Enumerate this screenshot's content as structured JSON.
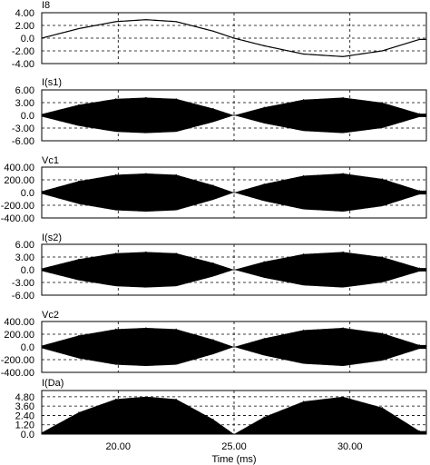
{
  "chart_data": [
    {
      "type": "line",
      "title": "I8",
      "ylim": [
        -4,
        4
      ],
      "yticks": [
        4,
        2,
        0,
        -2,
        -4
      ],
      "ytick_labels": [
        "4.00",
        "2.00",
        "0.0",
        "-2.00",
        "-4.00"
      ],
      "envelope": "signed-sine",
      "peak": 2.9,
      "filled": false,
      "x": [
        16.7,
        18.3,
        19.9,
        21.2,
        22.5,
        24.1,
        25.0,
        26.3,
        28.0,
        29.7,
        31.4,
        33.0
      ],
      "y": [
        0.0,
        1.5,
        2.6,
        2.9,
        2.6,
        1.1,
        0.0,
        -1.2,
        -2.5,
        -2.9,
        -2.0,
        -0.2
      ]
    },
    {
      "type": "area",
      "title": "I(s1)",
      "ylim": [
        -6,
        6
      ],
      "yticks": [
        6,
        3,
        0,
        -3,
        -6
      ],
      "ytick_labels": [
        "6.00",
        "3.00",
        "0.0",
        "-3.00",
        "-6.00"
      ],
      "envelope": "abs-sine-symmetric",
      "peak": 4.2,
      "filled": true,
      "x": [
        16.7,
        18.3,
        19.9,
        21.2,
        22.5,
        24.1,
        25.0,
        26.3,
        28.0,
        29.7,
        31.4,
        33.0
      ],
      "y": [
        0.3,
        2.5,
        3.9,
        4.2,
        3.9,
        1.6,
        0.0,
        1.9,
        3.7,
        4.2,
        3.0,
        0.4
      ]
    },
    {
      "type": "area",
      "title": "Vc1",
      "ylim": [
        -400,
        400
      ],
      "yticks": [
        400,
        200,
        0,
        -200,
        -400
      ],
      "ytick_labels": [
        "400.00",
        "200.00",
        "0.0",
        "-200.00",
        "-400.00"
      ],
      "envelope": "abs-sine-symmetric",
      "peak": 300,
      "filled": true,
      "x": [
        16.7,
        18.3,
        19.9,
        21.2,
        22.5,
        24.1,
        25.0,
        26.3,
        28.0,
        29.7,
        31.4,
        33.0
      ],
      "y": [
        20,
        180,
        280,
        300,
        280,
        115,
        0,
        135,
        265,
        300,
        215,
        30
      ]
    },
    {
      "type": "area",
      "title": "I(s2)",
      "ylim": [
        -6,
        6
      ],
      "yticks": [
        6,
        3,
        0,
        -3,
        -6
      ],
      "ytick_labels": [
        "6.00",
        "3.00",
        "0.0",
        "-3.00",
        "-6.00"
      ],
      "envelope": "abs-sine-symmetric",
      "peak": 4.2,
      "filled": true,
      "x": [
        16.7,
        18.3,
        19.9,
        21.2,
        22.5,
        24.1,
        25.0,
        26.3,
        28.0,
        29.7,
        31.4,
        33.0
      ],
      "y": [
        0.3,
        2.5,
        3.9,
        4.2,
        3.9,
        1.6,
        0.0,
        1.9,
        3.7,
        4.2,
        3.0,
        0.4
      ]
    },
    {
      "type": "area",
      "title": "Vc2",
      "ylim": [
        -400,
        400
      ],
      "yticks": [
        400,
        200,
        0,
        -200,
        -400
      ],
      "ytick_labels": [
        "400.00",
        "200.00",
        "0.0",
        "-200.00",
        "-400.00"
      ],
      "envelope": "abs-sine-symmetric",
      "peak": 300,
      "filled": true,
      "x": [
        16.7,
        18.3,
        19.9,
        21.2,
        22.5,
        24.1,
        25.0,
        26.3,
        28.0,
        29.7,
        31.4,
        33.0
      ],
      "y": [
        20,
        180,
        280,
        300,
        280,
        115,
        0,
        135,
        265,
        300,
        215,
        30
      ]
    },
    {
      "type": "area",
      "title": "I(Da)",
      "ylim": [
        0,
        5.6
      ],
      "yticks": [
        4.8,
        3.6,
        2.4,
        1.2,
        0
      ],
      "ytick_labels": [
        "4.80",
        "3.60",
        "2.40",
        "1.20",
        "0.0"
      ],
      "envelope": "abs-sine-positive",
      "peak": 4.8,
      "filled": true,
      "x": [
        16.7,
        18.3,
        19.9,
        21.2,
        22.5,
        24.1,
        25.0,
        26.3,
        28.0,
        29.7,
        31.4,
        33.0
      ],
      "y": [
        0.2,
        2.8,
        4.5,
        4.8,
        4.5,
        1.9,
        0.0,
        2.2,
        4.2,
        4.8,
        3.4,
        0.4
      ]
    }
  ],
  "xaxis": {
    "label": "Time (ms)",
    "xlim": [
      16.7,
      33.3
    ],
    "ticks": [
      20,
      25,
      30
    ],
    "tick_labels": [
      "20.00",
      "25.00",
      "30.00"
    ]
  },
  "style": {
    "line_color": "#000000",
    "fill_color": "#000000",
    "grid": "dashed",
    "background": "#ffffff"
  }
}
